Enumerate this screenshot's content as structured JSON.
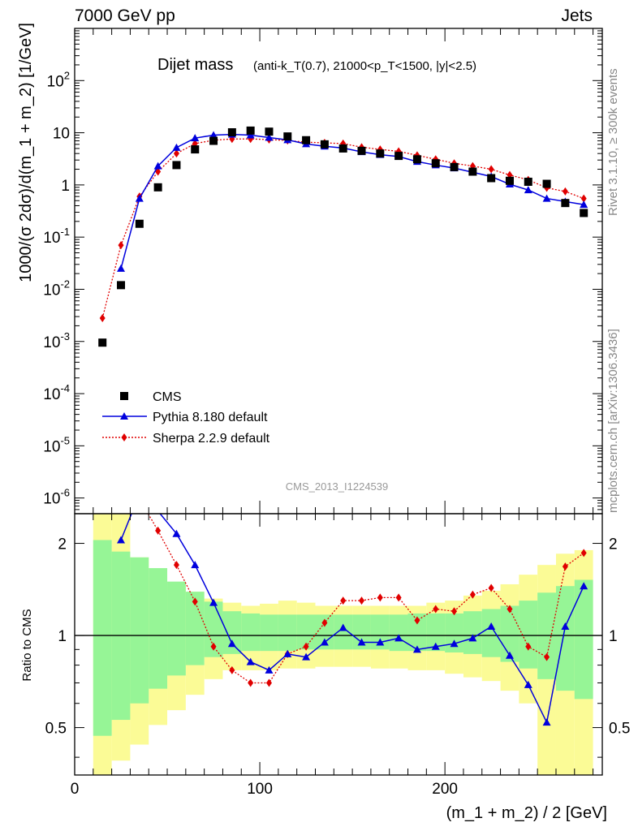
{
  "header": {
    "left": "7000 GeV pp",
    "right": "Jets"
  },
  "side_labels": {
    "rivet": "Rivet 3.1.10, ≥ 300k events",
    "mcplots": "mcplots.cern.ch [arXiv:1306.3436]"
  },
  "chart_data": {
    "type": "line",
    "title": "Dijet mass",
    "subtitle": "(anti-k_T(0.7), 21000<p_T<1500, |y|<2.5)",
    "analysis_id": "CMS_2013_I1224539",
    "xlabel": "(m_1 + m_2) / 2 [GeV]",
    "ylabel": "1000/(σ 2dσ)/d(m_1 + m_2) [1/GeV]",
    "ratio_ylabel": "Ratio to CMS",
    "xlim": [
      0,
      285
    ],
    "ylim": [
      5e-07,
      1000
    ],
    "ratio_ylim": [
      0.35,
      2.5
    ],
    "yscale": "log",
    "ratio_yscale": "log",
    "x_ticks": [
      "0",
      "100",
      "200"
    ],
    "y_ticks": [
      "10^-6",
      "10^-5",
      "10^-4",
      "10^-3",
      "10^-2",
      "10^-1",
      "1",
      "10",
      "10^2"
    ],
    "ratio_ticks": [
      "0.5",
      "1",
      "2"
    ],
    "legend_position": "bottom-left",
    "x": [
      15,
      25,
      35,
      45,
      55,
      65,
      75,
      85,
      95,
      105,
      115,
      125,
      135,
      145,
      155,
      165,
      175,
      185,
      195,
      205,
      215,
      225,
      235,
      245,
      255,
      265,
      275
    ],
    "series": [
      {
        "name": "CMS",
        "color": "#000000",
        "marker": "square",
        "values": [
          0.00095,
          0.012,
          0.18,
          0.9,
          2.4,
          4.8,
          7.0,
          10.2,
          11.0,
          10.5,
          8.5,
          7.2,
          6.0,
          5.0,
          4.5,
          4.0,
          3.6,
          3.1,
          2.6,
          2.2,
          1.8,
          1.35,
          1.2,
          1.15,
          1.05,
          0.45,
          0.29
        ]
      },
      {
        "name": "Pythia 8.180 default",
        "color": "#0000dd",
        "marker": "triangle",
        "line": "solid",
        "values": [
          null,
          0.025,
          0.55,
          2.3,
          5.2,
          7.9,
          9.0,
          9.3,
          9.0,
          8.1,
          7.3,
          6.1,
          5.5,
          5.1,
          4.3,
          3.8,
          3.5,
          2.8,
          2.4,
          2.1,
          1.75,
          1.45,
          1.03,
          0.8,
          0.55,
          0.48,
          0.42
        ]
      },
      {
        "name": "Sherpa 2.2.9 default",
        "color": "#e00000",
        "marker": "diamond",
        "line": "dotted",
        "values": [
          0.0028,
          0.07,
          0.6,
          1.8,
          4.0,
          6.2,
          7.2,
          7.6,
          7.6,
          7.4,
          7.1,
          6.6,
          6.4,
          6.2,
          5.3,
          4.8,
          4.4,
          3.7,
          3.1,
          2.6,
          2.3,
          2.0,
          1.55,
          1.25,
          0.88,
          0.75,
          0.55
        ]
      }
    ],
    "ratio": {
      "Pythia 8.180 default": [
        null,
        2.05,
        2.9,
        2.55,
        2.15,
        1.7,
        1.28,
        0.94,
        0.82,
        0.77,
        0.87,
        0.85,
        0.95,
        1.06,
        0.95,
        0.95,
        0.98,
        0.9,
        0.92,
        0.94,
        0.98,
        1.07,
        0.86,
        0.69,
        0.52,
        1.07,
        1.45
      ],
      "Sherpa 2.2.9 default": [
        2.95,
        2.9,
        2.8,
        2.2,
        1.7,
        1.29,
        0.92,
        0.77,
        0.7,
        0.7,
        0.87,
        0.92,
        1.1,
        1.3,
        1.3,
        1.33,
        1.33,
        1.12,
        1.22,
        1.2,
        1.36,
        1.43,
        1.22,
        0.92,
        0.85,
        1.68,
        1.86
      ]
    },
    "bands": {
      "green": [
        [
          0.47,
          2.05
        ],
        [
          0.53,
          1.88
        ],
        [
          0.6,
          1.8
        ],
        [
          0.67,
          1.66
        ],
        [
          0.74,
          1.5
        ],
        [
          0.8,
          1.39
        ],
        [
          0.85,
          1.29
        ],
        [
          0.87,
          1.2
        ],
        [
          0.89,
          1.18
        ],
        [
          0.89,
          1.17
        ],
        [
          0.89,
          1.17
        ],
        [
          0.9,
          1.17
        ],
        [
          0.9,
          1.17
        ],
        [
          0.9,
          1.17
        ],
        [
          0.9,
          1.17
        ],
        [
          0.9,
          1.17
        ],
        [
          0.89,
          1.17
        ],
        [
          0.89,
          1.18
        ],
        [
          0.89,
          1.18
        ],
        [
          0.88,
          1.18
        ],
        [
          0.87,
          1.2
        ],
        [
          0.85,
          1.22
        ],
        [
          0.82,
          1.25
        ],
        [
          0.78,
          1.3
        ],
        [
          0.72,
          1.38
        ],
        [
          0.66,
          1.45
        ],
        [
          0.62,
          1.52
        ]
      ],
      "yellow": [
        [
          0.35,
          2.6
        ],
        [
          0.39,
          2.6
        ],
        [
          0.44,
          1.8
        ],
        [
          0.51,
          1.55
        ],
        [
          0.57,
          1.45
        ],
        [
          0.64,
          1.39
        ],
        [
          0.72,
          1.32
        ],
        [
          0.77,
          1.28
        ],
        [
          0.77,
          1.25
        ],
        [
          0.77,
          1.27
        ],
        [
          0.78,
          1.3
        ],
        [
          0.78,
          1.28
        ],
        [
          0.79,
          1.25
        ],
        [
          0.79,
          1.25
        ],
        [
          0.79,
          1.25
        ],
        [
          0.78,
          1.25
        ],
        [
          0.78,
          1.25
        ],
        [
          0.77,
          1.25
        ],
        [
          0.77,
          1.28
        ],
        [
          0.75,
          1.3
        ],
        [
          0.73,
          1.35
        ],
        [
          0.71,
          1.4
        ],
        [
          0.66,
          1.47
        ],
        [
          0.6,
          1.58
        ],
        [
          0.35,
          1.7
        ],
        [
          0.35,
          1.85
        ],
        [
          0.35,
          1.9
        ]
      ]
    }
  }
}
